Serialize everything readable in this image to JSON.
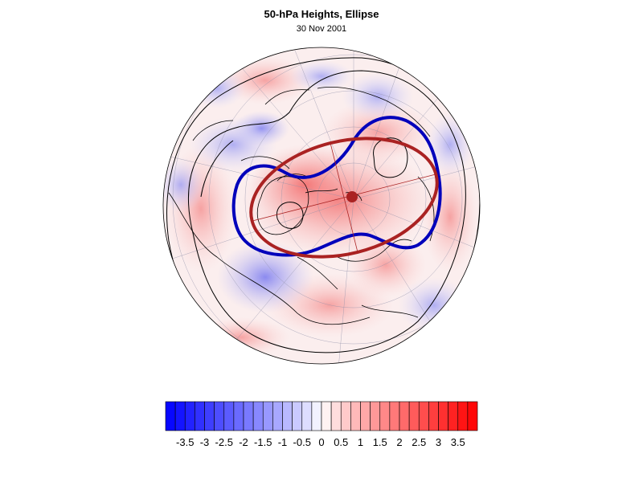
{
  "header": {
    "title": "50-hPa Heights, Ellipse",
    "date": "30 Nov 2001"
  },
  "colors": {
    "negative_max": "#0000ff",
    "positive_max": "#ff0000",
    "neutral": "#ffffff",
    "contour_blue": "#0000bb",
    "ellipse_red": "#aa2222"
  },
  "colorbar": {
    "levels": [
      -4,
      -3.75,
      -3.5,
      -3.25,
      -3,
      -2.75,
      -2.5,
      -2.25,
      -2,
      -1.75,
      -1.5,
      -1.25,
      -1,
      -0.75,
      -0.5,
      -0.25,
      0,
      0.25,
      0.5,
      0.75,
      1,
      1.25,
      1.5,
      1.75,
      2,
      2.25,
      2.5,
      2.75,
      3,
      3.25,
      3.5,
      3.75,
      4
    ],
    "labels": [
      "-3.5",
      "-3",
      "-2.5",
      "-2",
      "-1.5",
      "-1",
      "-0.5",
      "0",
      "0.5",
      "1",
      "1.5",
      "2",
      "2.5",
      "3",
      "3.5"
    ]
  }
}
